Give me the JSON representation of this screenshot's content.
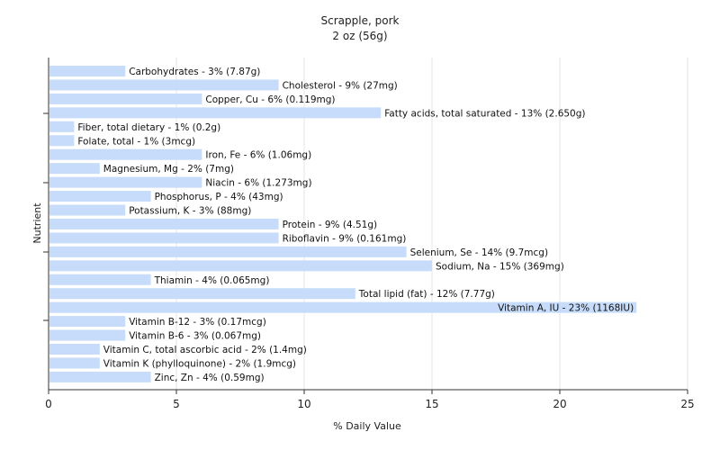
{
  "chart_data": {
    "type": "bar",
    "orientation": "horizontal",
    "title": "Scrapple, pork",
    "subtitle": "2 oz (56g)",
    "xlabel": "% Daily Value",
    "ylabel": "Nutrient",
    "xlim": [
      0,
      25
    ],
    "xticks": [
      "0",
      "5",
      "10",
      "15",
      "20",
      "25"
    ],
    "grid": true,
    "bar_color": "#c6dcfa",
    "categories": [
      "Carbohydrates",
      "Cholesterol",
      "Copper, Cu",
      "Fatty acids, total saturated",
      "Fiber, total dietary",
      "Folate, total",
      "Iron, Fe",
      "Magnesium, Mg",
      "Niacin",
      "Phosphorus, P",
      "Potassium, K",
      "Protein",
      "Riboflavin",
      "Selenium, Se",
      "Sodium, Na",
      "Thiamin",
      "Total lipid (fat)",
      "Vitamin A, IU",
      "Vitamin B-12",
      "Vitamin B-6",
      "Vitamin C, total ascorbic acid",
      "Vitamin K (phylloquinone)",
      "Zinc, Zn"
    ],
    "values": [
      3,
      9,
      6,
      13,
      1,
      1,
      6,
      2,
      6,
      4,
      3,
      9,
      9,
      14,
      15,
      4,
      12,
      23,
      3,
      3,
      2,
      2,
      4
    ],
    "labels": [
      "Carbohydrates - 3% (7.87g)",
      "Cholesterol - 9% (27mg)",
      "Copper, Cu - 6% (0.119mg)",
      "Fatty acids, total saturated - 13% (2.650g)",
      "Fiber, total dietary - 1% (0.2g)",
      "Folate, total - 1% (3mcg)",
      "Iron, Fe - 6% (1.06mg)",
      "Magnesium, Mg - 2% (7mg)",
      "Niacin - 6% (1.273mg)",
      "Phosphorus, P - 4% (43mg)",
      "Potassium, K - 3% (88mg)",
      "Protein - 9% (4.51g)",
      "Riboflavin - 9% (0.161mg)",
      "Selenium, Se - 14% (9.7mcg)",
      "Sodium, Na - 15% (369mg)",
      "Thiamin - 4% (0.065mg)",
      "Total lipid (fat) - 12% (7.77g)",
      "Vitamin A, IU - 23% (1168IU)",
      "Vitamin B-12 - 3% (0.17mcg)",
      "Vitamin B-6 - 3% (0.067mg)",
      "Vitamin C, total ascorbic acid - 2% (1.4mg)",
      "Vitamin K (phylloquinone) - 2% (1.9mcg)",
      "Zinc, Zn - 4% (0.59mg)"
    ]
  }
}
